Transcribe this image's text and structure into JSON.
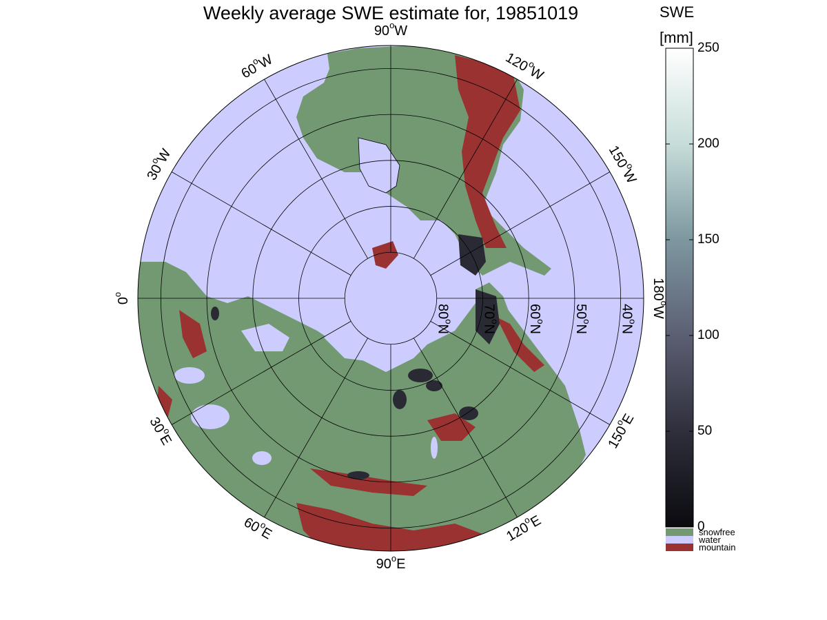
{
  "title": "Weekly average SWE estimate for, 19851019",
  "colorbar": {
    "title": "SWE",
    "unit": "[mm]",
    "ticks": [
      0,
      50,
      100,
      150,
      200,
      250
    ],
    "range": [
      0,
      250
    ],
    "gradient": [
      "#0a0a0f",
      "#2f2f3c",
      "#5c5f73",
      "#7d97a0",
      "#c6ddd9",
      "#ffffff"
    ]
  },
  "legend": [
    {
      "label": "snowfree",
      "color": "#739972"
    },
    {
      "label": "water",
      "color": "#ccccfe"
    },
    {
      "label": "mountain",
      "color": "#9a3232"
    }
  ],
  "colors": {
    "water": "#ccccfe",
    "land": "#739972",
    "mountain": "#9a3232",
    "deep_snow": "#2a2a35",
    "grid": "#000000"
  },
  "meridians": [
    {
      "lon": -180,
      "text": "180",
      "sup": "o",
      "dir": "W"
    },
    {
      "lon": -150,
      "text": "150",
      "sup": "o",
      "dir": "W"
    },
    {
      "lon": -120,
      "text": "120",
      "sup": "o",
      "dir": "W"
    },
    {
      "lon": -90,
      "text": "90",
      "sup": "o",
      "dir": "W"
    },
    {
      "lon": -60,
      "text": "60",
      "sup": "o",
      "dir": "W"
    },
    {
      "lon": -30,
      "text": "30",
      "sup": "o",
      "dir": "W"
    },
    {
      "lon": 0,
      "text": "0",
      "sup": "o",
      "dir": ""
    },
    {
      "lon": 30,
      "text": "30",
      "sup": "o",
      "dir": "E"
    },
    {
      "lon": 60,
      "text": "60",
      "sup": "o",
      "dir": "E"
    },
    {
      "lon": 90,
      "text": "90",
      "sup": "o",
      "dir": "E"
    },
    {
      "lon": 120,
      "text": "120",
      "sup": "o",
      "dir": "E"
    },
    {
      "lon": 150,
      "text": "150",
      "sup": "o",
      "dir": "E"
    }
  ],
  "parallels": [
    {
      "lat": 80,
      "text": "80",
      "sup": "o",
      "dir": "N"
    },
    {
      "lat": 70,
      "text": "70",
      "sup": "o",
      "dir": "N"
    },
    {
      "lat": 60,
      "text": "60",
      "sup": "o",
      "dir": "N"
    },
    {
      "lat": 50,
      "text": "50",
      "sup": "o",
      "dir": "N"
    },
    {
      "lat": 40,
      "text": "40",
      "sup": "o",
      "dir": "N"
    }
  ],
  "map": {
    "projection": "north-polar",
    "min_lat": 35,
    "rotation": "90W up, 0 left, 180W right, 90E down"
  }
}
